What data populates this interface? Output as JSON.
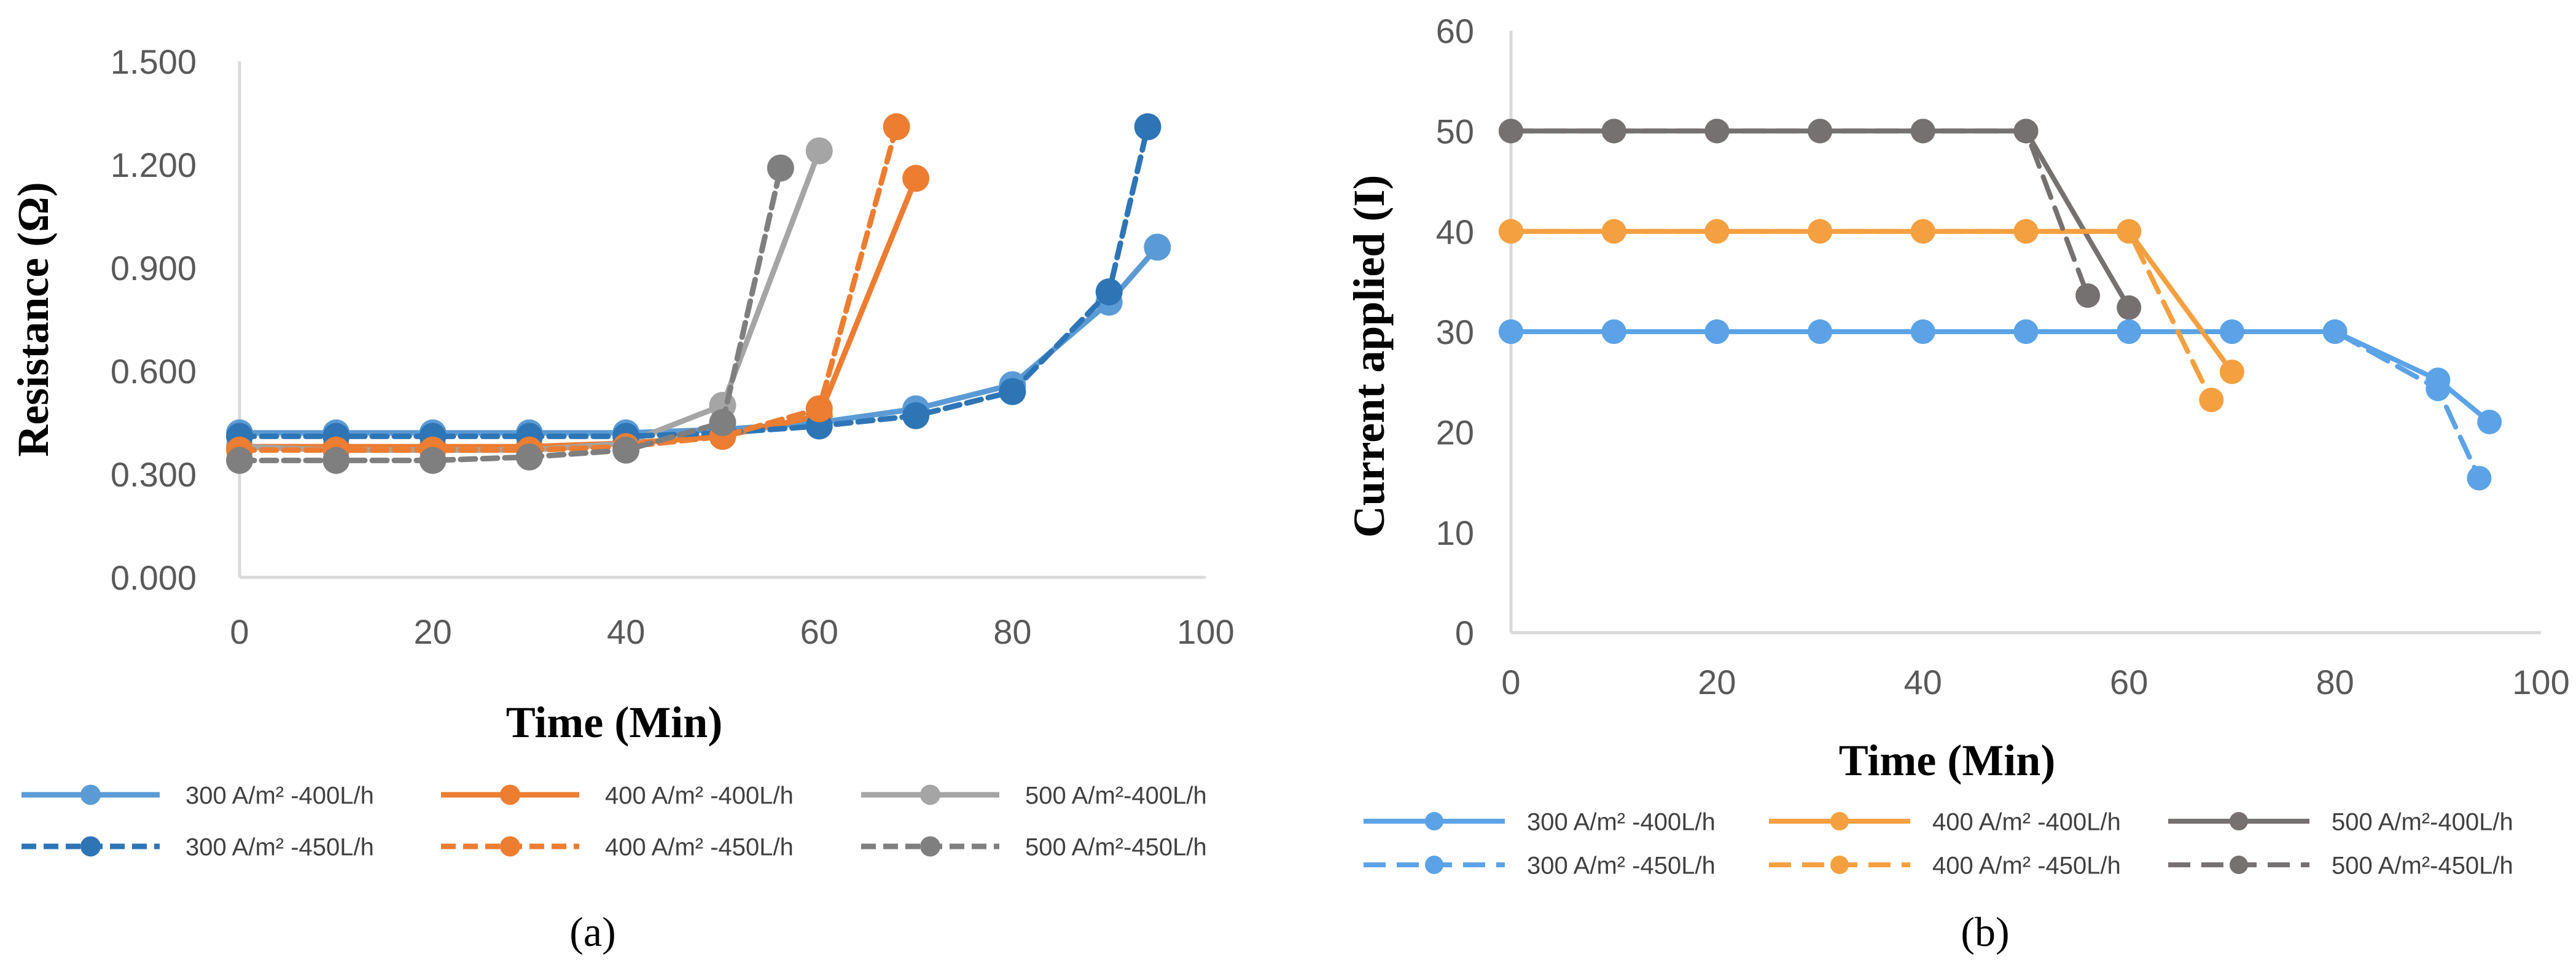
{
  "chart_data": [
    {
      "type": "line",
      "panel_label": "(a)",
      "xlabel": "Time (Min)",
      "ylabel": "Resistance (Ω)",
      "xlim": [
        0,
        100
      ],
      "ylim": [
        0,
        1.5
      ],
      "x_ticks": [
        "0",
        "20",
        "40",
        "60",
        "80",
        "100"
      ],
      "y_ticks": [
        "0.000",
        "0.300",
        "0.600",
        "0.900",
        "1.200",
        "1.500"
      ],
      "grid": false,
      "legend_position": "bottom",
      "series": [
        {
          "name": "300 A/m² -400L/h",
          "color": "#5b9bd5",
          "dash": "solid",
          "x": [
            0,
            10,
            20,
            30,
            40,
            50,
            60,
            70,
            80,
            90,
            95
          ],
          "y": [
            0.42,
            0.42,
            0.42,
            0.42,
            0.42,
            0.43,
            0.45,
            0.49,
            0.56,
            0.8,
            0.96
          ]
        },
        {
          "name": "400 A/m² -400L/h",
          "color": "#ed7d31",
          "dash": "solid",
          "x": [
            0,
            10,
            20,
            30,
            40,
            50,
            60,
            70
          ],
          "y": [
            0.38,
            0.38,
            0.38,
            0.38,
            0.39,
            0.41,
            0.47,
            1.16
          ]
        },
        {
          "name": "500 A/m²-400L/h",
          "color": "#a5a5a5",
          "dash": "solid",
          "x": [
            0,
            10,
            20,
            30,
            40,
            50,
            60
          ],
          "y": [
            0.38,
            0.37,
            0.37,
            0.37,
            0.39,
            0.5,
            1.24
          ]
        },
        {
          "name": "300 A/m² -450L/h",
          "color": "#2e75b6",
          "dash": "dashed",
          "x": [
            0,
            10,
            20,
            30,
            40,
            50,
            60,
            70,
            80,
            90,
            94
          ],
          "y": [
            0.41,
            0.41,
            0.41,
            0.41,
            0.41,
            0.42,
            0.44,
            0.47,
            0.54,
            0.83,
            1.31
          ]
        },
        {
          "name": "400 A/m² -450L/h",
          "color": "#ed7d31",
          "dash": "dashed",
          "x": [
            0,
            10,
            20,
            30,
            40,
            50,
            60,
            68
          ],
          "y": [
            0.37,
            0.37,
            0.37,
            0.37,
            0.38,
            0.41,
            0.49,
            1.31
          ]
        },
        {
          "name": "500 A/m²-450L/h",
          "color": "#7f7f7f",
          "dash": "dashed",
          "x": [
            0,
            10,
            20,
            30,
            40,
            50,
            56
          ],
          "y": [
            0.34,
            0.34,
            0.34,
            0.35,
            0.37,
            0.45,
            1.19
          ]
        }
      ]
    },
    {
      "type": "line",
      "panel_label": "(b)",
      "xlabel": "Time (Min)",
      "ylabel": "Current applied (I)",
      "xlim": [
        0,
        100
      ],
      "ylim": [
        0,
        60
      ],
      "x_ticks": [
        "0",
        "20",
        "40",
        "60",
        "80",
        "100"
      ],
      "y_ticks": [
        "0",
        "10",
        "20",
        "30",
        "40",
        "50",
        "60"
      ],
      "grid": false,
      "legend_position": "bottom",
      "series": [
        {
          "name": "300 A/m² -400L/h",
          "color": "#5ba3e6",
          "dash": "solid",
          "x": [
            0,
            10,
            20,
            30,
            40,
            50,
            60,
            70,
            80,
            90,
            95
          ],
          "y": [
            30,
            30,
            30,
            30,
            30,
            30,
            30,
            30,
            30,
            25.2,
            21
          ]
        },
        {
          "name": "400 A/m² -400L/h",
          "color": "#f4a040",
          "dash": "solid",
          "x": [
            0,
            10,
            20,
            30,
            40,
            50,
            60,
            70
          ],
          "y": [
            40,
            40,
            40,
            40,
            40,
            40,
            40,
            26
          ]
        },
        {
          "name": "500 A/m²-400L/h",
          "color": "#767171",
          "dash": "solid",
          "x": [
            0,
            10,
            20,
            30,
            40,
            50,
            60
          ],
          "y": [
            50,
            50,
            50,
            50,
            50,
            50,
            32.4
          ]
        },
        {
          "name": "300 A/m² -450L/h",
          "color": "#5ba3e6",
          "dash": "dashed",
          "x": [
            0,
            10,
            20,
            30,
            40,
            50,
            60,
            70,
            80,
            90,
            94
          ],
          "y": [
            30,
            30,
            30,
            30,
            30,
            30,
            30,
            30,
            30,
            24.3,
            15.4
          ]
        },
        {
          "name": "400 A/m² -450L/h",
          "color": "#f4a040",
          "dash": "dashed",
          "x": [
            0,
            10,
            20,
            30,
            40,
            50,
            60,
            68
          ],
          "y": [
            40,
            40,
            40,
            40,
            40,
            40,
            40,
            23.2
          ]
        },
        {
          "name": "500 A/m²-450L/h",
          "color": "#767171",
          "dash": "dashed",
          "x": [
            0,
            10,
            20,
            30,
            40,
            50,
            56
          ],
          "y": [
            50,
            50,
            50,
            50,
            50,
            50,
            33.6
          ]
        }
      ]
    }
  ]
}
